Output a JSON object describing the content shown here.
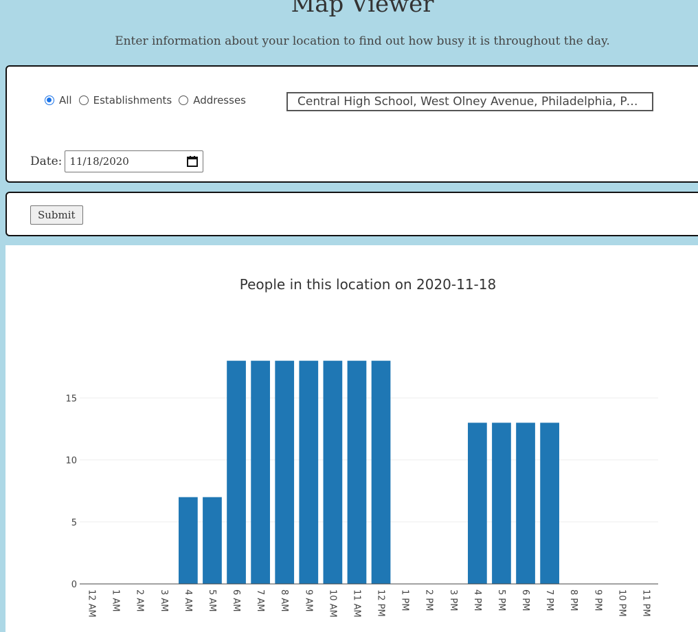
{
  "header": {
    "title": "Map Viewer",
    "subtitle": "Enter information about your location to find out how busy it is throughout the day."
  },
  "form": {
    "radios": [
      {
        "label": "All",
        "checked": true
      },
      {
        "label": "Establishments",
        "checked": false
      },
      {
        "label": "Addresses",
        "checked": false
      }
    ],
    "location_value": "Central High School, West Olney Avenue, Philadelphia, PA, USA",
    "date_label": "Date:",
    "date_value": "11/18/2020",
    "submit_label": "Submit"
  },
  "colors": {
    "background": "#add8e6",
    "bar": "#1f77b4",
    "radio_accent": "#1a73e8"
  },
  "chart_data": {
    "type": "bar",
    "title": "People in this location on 2020-11-18",
    "xlabel": "",
    "ylabel": "",
    "categories": [
      "12 AM",
      "1 AM",
      "2 AM",
      "3 AM",
      "4 AM",
      "5 AM",
      "6 AM",
      "7 AM",
      "8 AM",
      "9 AM",
      "10 AM",
      "11 AM",
      "12 PM",
      "1 PM",
      "2 PM",
      "3 PM",
      "4 PM",
      "5 PM",
      "6 PM",
      "7 PM",
      "8 PM",
      "9 PM",
      "10 PM",
      "11 PM"
    ],
    "values": [
      0,
      0,
      0,
      0,
      7,
      7,
      18,
      18,
      18,
      18,
      18,
      18,
      18,
      0,
      0,
      0,
      13,
      13,
      13,
      13,
      0,
      0,
      0,
      0
    ],
    "yticks": [
      0,
      5,
      10,
      15
    ],
    "ylim": [
      0,
      18.95
    ],
    "grid": true,
    "legend": "none"
  }
}
